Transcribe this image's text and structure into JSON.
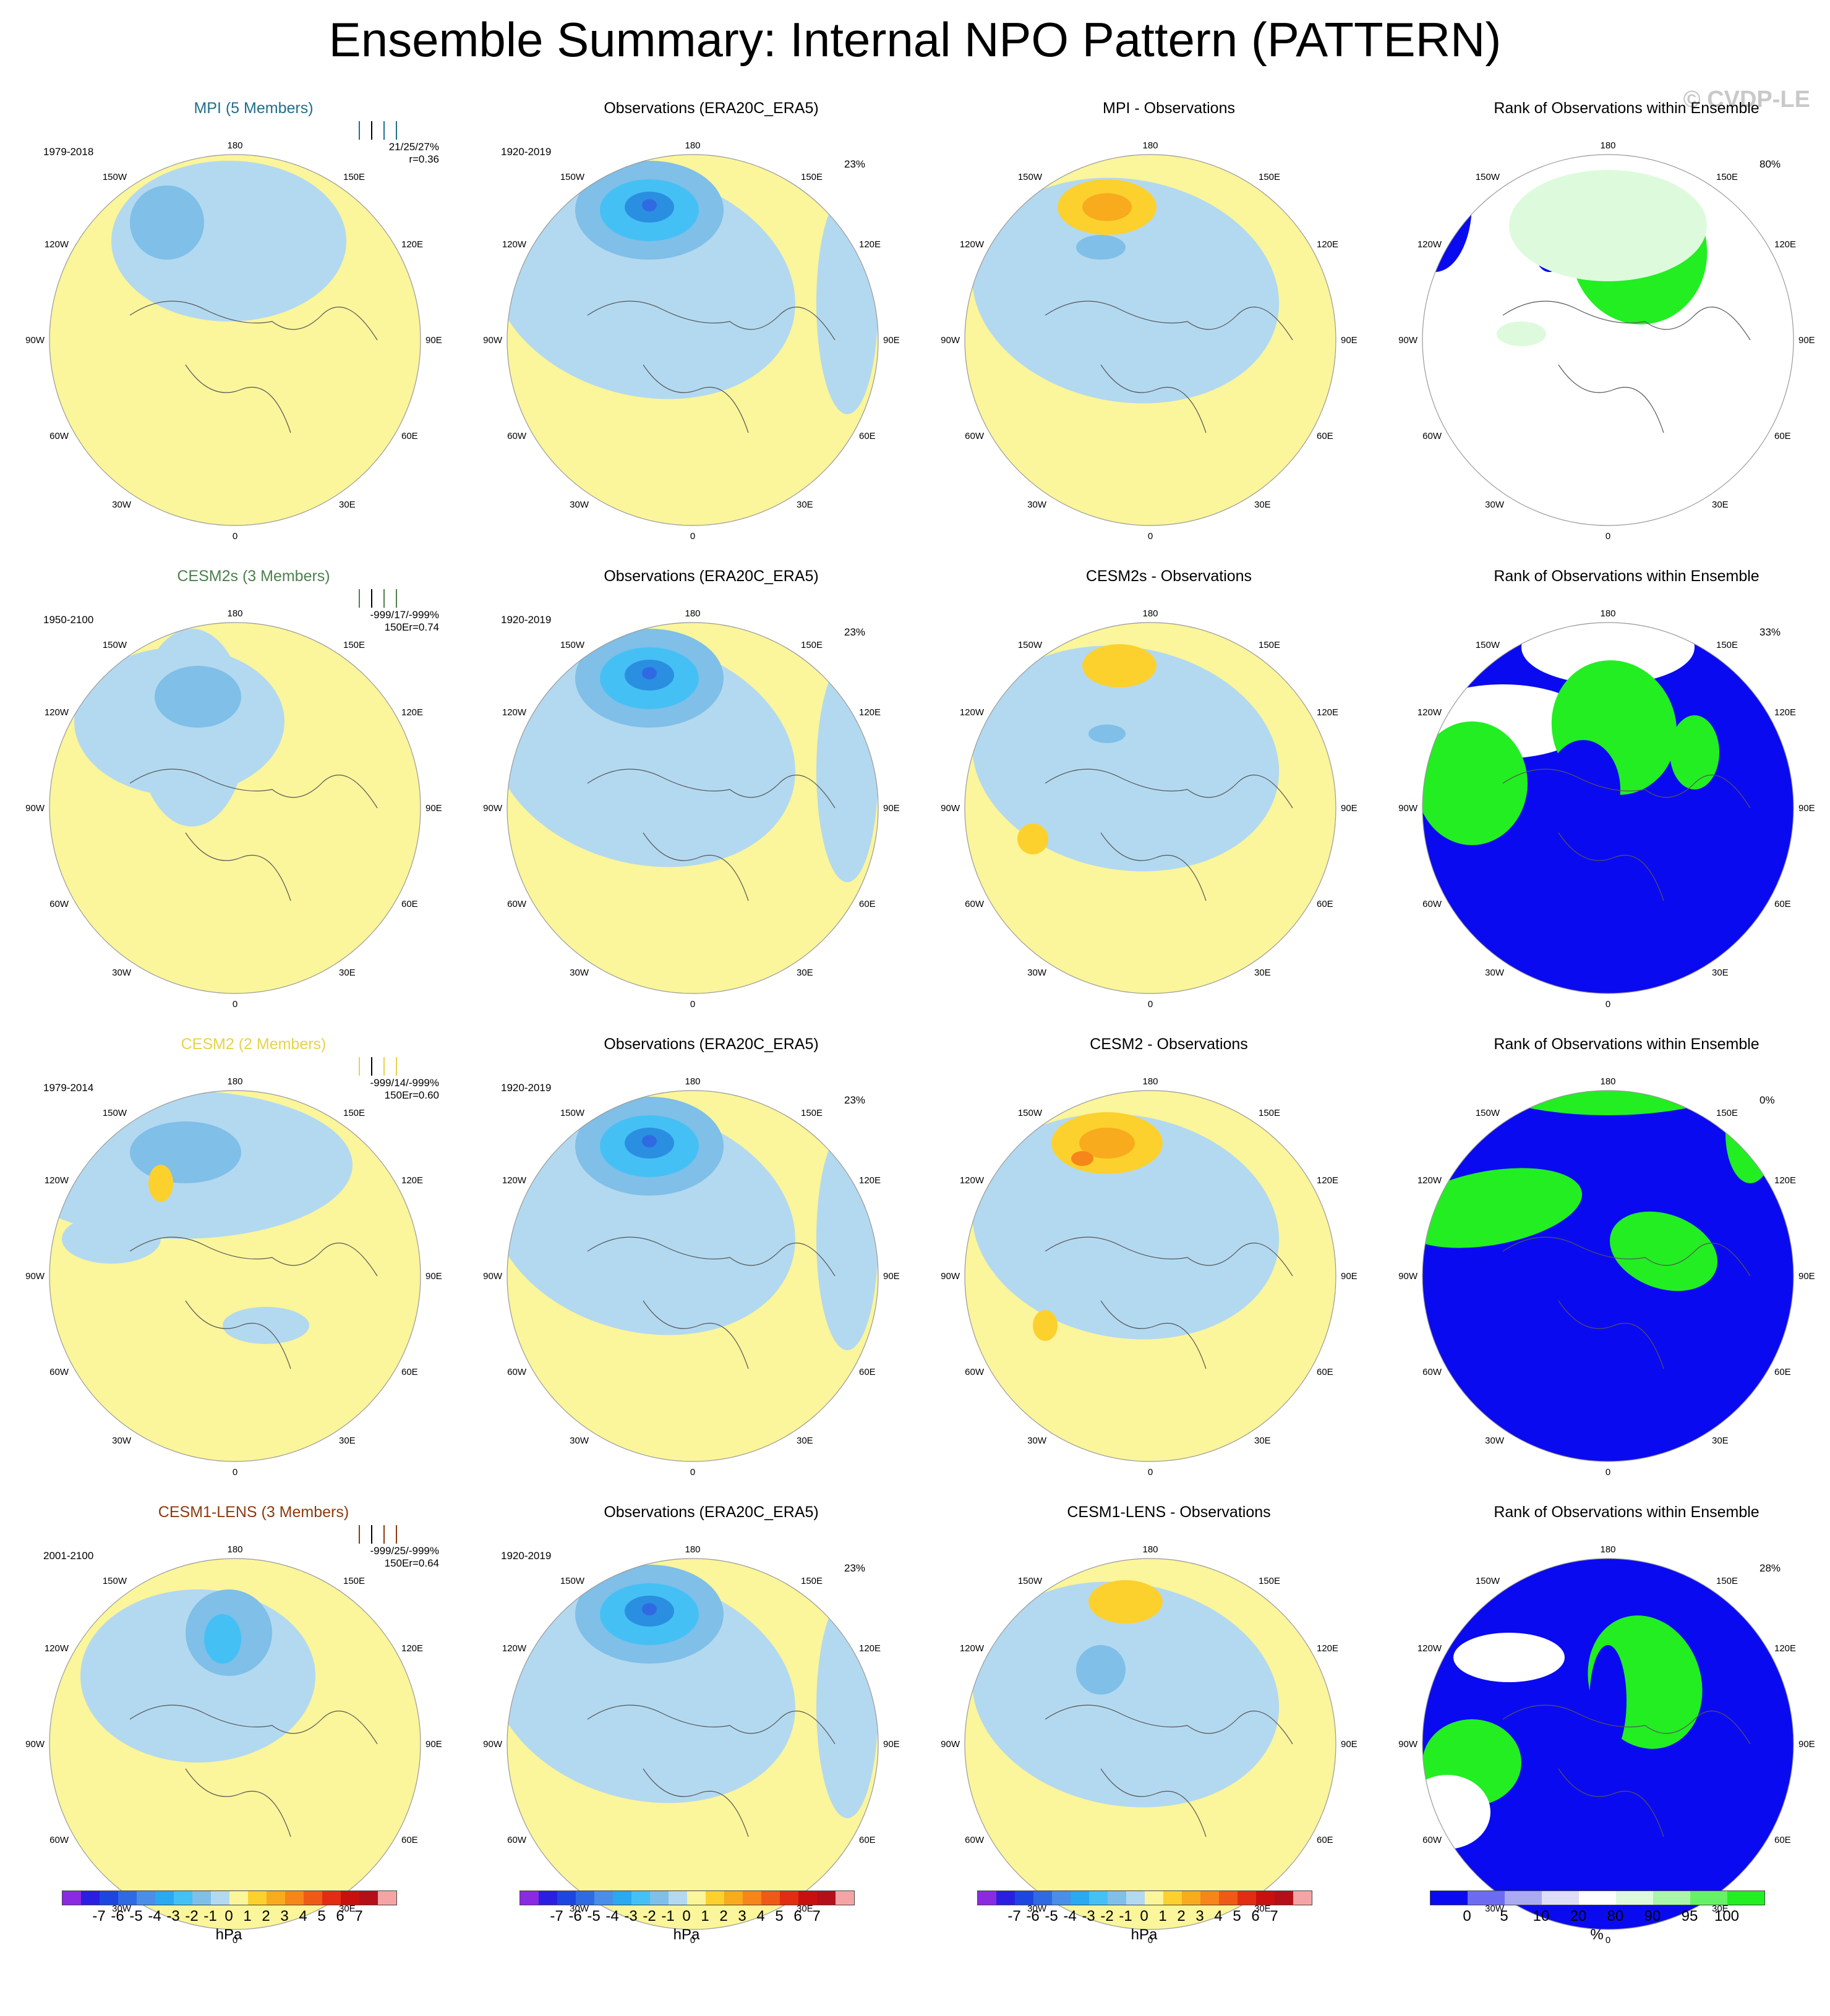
{
  "title": "Ensemble Summary: Internal NPO Pattern (PATTERN)",
  "copyright": "© CVDP-LE",
  "map_labels": {
    "top": "180",
    "bottom": "0",
    "left": "90W",
    "right": "90E",
    "upper_left_inner": "150W",
    "upper_right_inner": "150E",
    "upper_left": "120W",
    "upper_right": "120E",
    "lower_left": "60W",
    "lower_right": "60E",
    "lower_left_inner": "30W",
    "lower_right_inner": "30E"
  },
  "rows": [
    {
      "model": {
        "title": "MPI (5 Members)",
        "color": "#1f6f8b",
        "years": "1979-2018",
        "stats1": "21/25/27%",
        "stats2": "r=0.36"
      },
      "obs": {
        "title": "Observations (ERA20C_ERA5)",
        "years": "1920-2019",
        "pct": "23%"
      },
      "diff": {
        "title": "MPI - Observations"
      },
      "rank": {
        "title": "Rank of Observations within Ensemble",
        "pct": "80%"
      }
    },
    {
      "model": {
        "title": "CESM2s (3 Members)",
        "color": "#4f7f4f",
        "years": "1950-2100",
        "stats1": "-999/17/-999%",
        "stats2": "150Er=0.74"
      },
      "obs": {
        "title": "Observations (ERA20C_ERA5)",
        "years": "1920-2019",
        "pct": "23%"
      },
      "diff": {
        "title": "CESM2s - Observations"
      },
      "rank": {
        "title": "Rank of Observations within Ensemble",
        "pct": "33%"
      }
    },
    {
      "model": {
        "title": "CESM2 (2 Members)",
        "color": "#e6d34a",
        "years": "1979-2014",
        "stats1": "-999/14/-999%",
        "stats2": "150Er=0.60"
      },
      "obs": {
        "title": "Observations (ERA20C_ERA5)",
        "years": "1920-2019",
        "pct": "23%"
      },
      "diff": {
        "title": "CESM2 - Observations"
      },
      "rank": {
        "title": "Rank of Observations within Ensemble",
        "pct": "0%"
      }
    },
    {
      "model": {
        "title": "CESM1-LENS (3 Members)",
        "color": "#8b3a0f",
        "years": "2001-2100",
        "stats1": "-999/25/-999%",
        "stats2": "150Er=0.64"
      },
      "obs": {
        "title": "Observations (ERA20C_ERA5)",
        "years": "1920-2019",
        "pct": "23%"
      },
      "diff": {
        "title": "CESM1-LENS - Observations"
      },
      "rank": {
        "title": "Rank of Observations within Ensemble",
        "pct": "28%"
      }
    }
  ],
  "colorbar_hpa": {
    "unit": "hPa",
    "ticks": [
      "-7",
      "-6",
      "-5",
      "-4",
      "-3",
      "-2",
      "-1",
      "0",
      "1",
      "2",
      "3",
      "4",
      "5",
      "6",
      "7"
    ],
    "colors": [
      "#8a2be2",
      "#2a1fe0",
      "#1d46e0",
      "#2f6ae3",
      "#4a8ee8",
      "#2aa8f0",
      "#45c0f5",
      "#7fbfe8",
      "#b3d9f0",
      "#fbf59b",
      "#fcd12e",
      "#f8ab1c",
      "#f6861a",
      "#ef5a16",
      "#e22d12",
      "#c8100e",
      "#b4101a",
      "#f4a4a4"
    ]
  },
  "colorbar_pct": {
    "unit": "%",
    "ticks": [
      "0",
      "5",
      "10",
      "20",
      "80",
      "90",
      "95",
      "100"
    ],
    "colors": [
      "#0a0af0",
      "#6c6cf2",
      "#aaaaf0",
      "#ddddf8",
      "#ffffff",
      "#ddfadd",
      "#aaf5aa",
      "#66f266",
      "#22ee22"
    ]
  }
}
